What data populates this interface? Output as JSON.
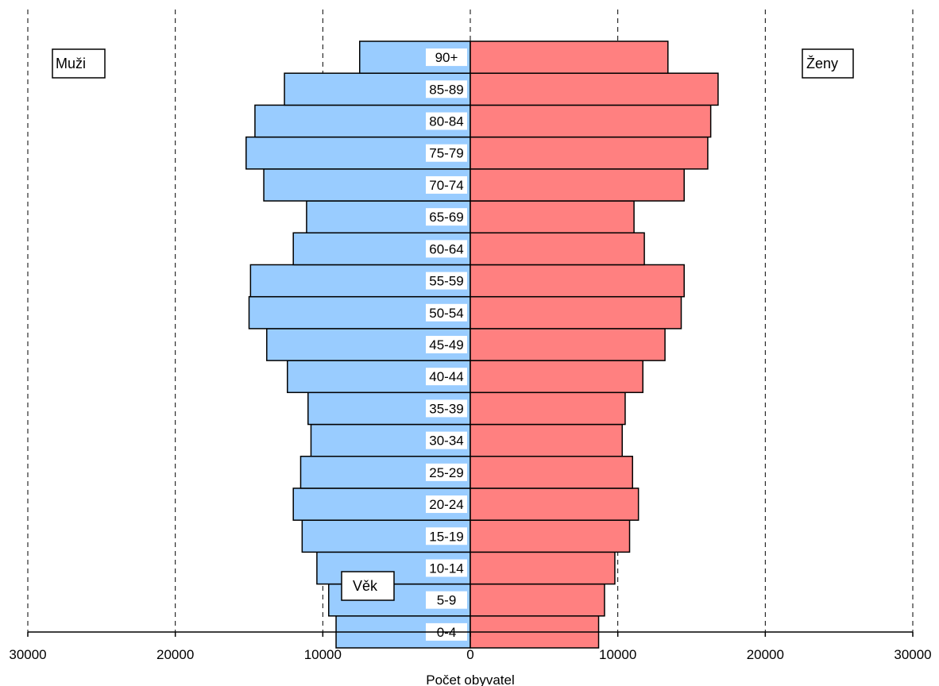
{
  "chart_data": {
    "type": "bar",
    "orientation": "horizontal",
    "title": "",
    "xlabel": "Počet obyvatel",
    "ylabel": "Věk",
    "xlim": [
      -30000,
      30000
    ],
    "x_ticks": [
      -30000,
      -20000,
      -10000,
      0,
      10000,
      20000,
      30000
    ],
    "x_tick_labels": [
      "30000",
      "20000",
      "10000",
      "0",
      "10000",
      "20000",
      "30000"
    ],
    "grid": "vertical dashed",
    "categories": [
      "0-4",
      "5-9",
      "10-14",
      "15-19",
      "20-24",
      "25-29",
      "30-34",
      "35-39",
      "40-44",
      "45-49",
      "50-54",
      "55-59",
      "60-64",
      "65-69",
      "70-74",
      "75-79",
      "80-84",
      "85-89",
      "90+"
    ],
    "series": [
      {
        "name": "Muži",
        "color": "#99ccff",
        "side": "left",
        "values": [
          9100,
          9600,
          10400,
          11400,
          12000,
          11500,
          10800,
          11000,
          12400,
          13800,
          15000,
          14900,
          12000,
          11100,
          14000,
          15200,
          14600,
          12600,
          7500
        ]
      },
      {
        "name": "Ženy",
        "color": "#ff8080",
        "side": "right",
        "values": [
          8700,
          9100,
          9800,
          10800,
          11400,
          11000,
          10300,
          10500,
          11700,
          13200,
          14300,
          14500,
          11800,
          11100,
          14500,
          16100,
          16300,
          16800,
          13400
        ]
      }
    ],
    "legend": {
      "left_label": "Muži",
      "right_label": "Ženy"
    },
    "age_label": "Věk"
  }
}
